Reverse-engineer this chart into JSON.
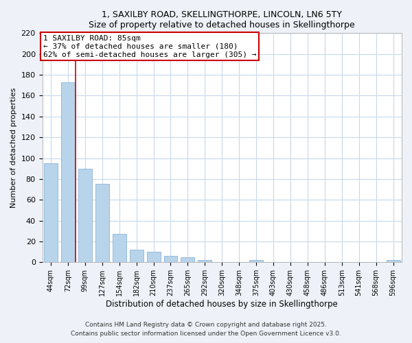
{
  "title1": "1, SAXILBY ROAD, SKELLINGTHORPE, LINCOLN, LN6 5TY",
  "title2": "Size of property relative to detached houses in Skellingthorpe",
  "xlabel": "Distribution of detached houses by size in Skellingthorpe",
  "ylabel": "Number of detached properties",
  "categories": [
    "44sqm",
    "72sqm",
    "99sqm",
    "127sqm",
    "154sqm",
    "182sqm",
    "210sqm",
    "237sqm",
    "265sqm",
    "292sqm",
    "320sqm",
    "348sqm",
    "375sqm",
    "403sqm",
    "430sqm",
    "458sqm",
    "486sqm",
    "513sqm",
    "541sqm",
    "568sqm",
    "596sqm"
  ],
  "values": [
    95,
    173,
    90,
    75,
    27,
    12,
    10,
    6,
    5,
    2,
    0,
    0,
    2,
    0,
    0,
    0,
    0,
    0,
    0,
    0,
    2
  ],
  "bar_color": "#b8d4ea",
  "bar_edge_color": "#8ab4d4",
  "red_line_x": 1.45,
  "annotation_title": "1 SAXILBY ROAD: 85sqm",
  "annotation_line1": "← 37% of detached houses are smaller (180)",
  "annotation_line2": "62% of semi-detached houses are larger (305) →",
  "ylim": [
    0,
    220
  ],
  "yticks": [
    0,
    20,
    40,
    60,
    80,
    100,
    120,
    140,
    160,
    180,
    200,
    220
  ],
  "footer1": "Contains HM Land Registry data © Crown copyright and database right 2025.",
  "footer2": "Contains public sector information licensed under the Open Government Licence v3.0.",
  "bg_color": "#eef2f8",
  "plot_bg_color": "#ffffff",
  "grid_color": "#c8d8ec"
}
